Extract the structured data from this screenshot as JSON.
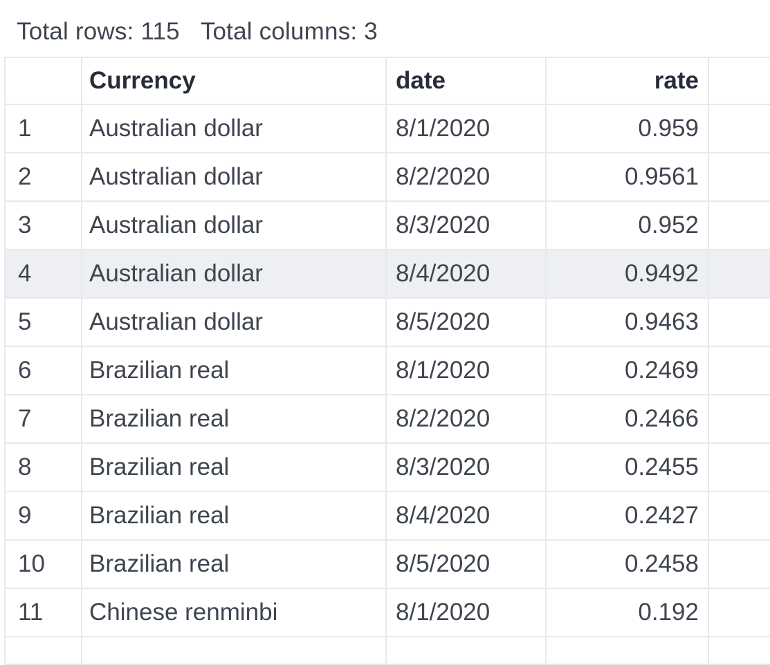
{
  "summary": {
    "total_rows_label": "Total rows: 115",
    "total_columns_label": "Total columns: 3"
  },
  "table": {
    "columns": [
      {
        "key": "index",
        "label": "",
        "align": "left"
      },
      {
        "key": "currency",
        "label": "Currency",
        "align": "left"
      },
      {
        "key": "date",
        "label": "date",
        "align": "left"
      },
      {
        "key": "rate",
        "label": "rate",
        "align": "right"
      },
      {
        "key": "extra",
        "label": "",
        "align": "left"
      }
    ],
    "highlighted_row_number": 4,
    "rows": [
      {
        "index": "1",
        "currency": "Australian dollar",
        "date": "8/1/2020",
        "rate": "0.959"
      },
      {
        "index": "2",
        "currency": "Australian dollar",
        "date": "8/2/2020",
        "rate": "0.9561"
      },
      {
        "index": "3",
        "currency": "Australian dollar",
        "date": "8/3/2020",
        "rate": "0.952"
      },
      {
        "index": "4",
        "currency": "Australian dollar",
        "date": "8/4/2020",
        "rate": "0.9492"
      },
      {
        "index": "5",
        "currency": "Australian dollar",
        "date": "8/5/2020",
        "rate": "0.9463"
      },
      {
        "index": "6",
        "currency": "Brazilian real",
        "date": "8/1/2020",
        "rate": "0.2469"
      },
      {
        "index": "7",
        "currency": "Brazilian real",
        "date": "8/2/2020",
        "rate": "0.2466"
      },
      {
        "index": "8",
        "currency": "Brazilian real",
        "date": "8/3/2020",
        "rate": "0.2455"
      },
      {
        "index": "9",
        "currency": "Brazilian real",
        "date": "8/4/2020",
        "rate": "0.2427"
      },
      {
        "index": "10",
        "currency": "Brazilian real",
        "date": "8/5/2020",
        "rate": "0.2458"
      },
      {
        "index": "11",
        "currency": "Chinese renminbi",
        "date": "8/1/2020",
        "rate": "0.192"
      }
    ],
    "trailing_partial_row": true
  },
  "colors": {
    "background": "#ffffff",
    "border": "#e6e9ed",
    "row_highlight": "#edeff2",
    "body_text": "#3e4550",
    "header_text": "#272d38"
  }
}
